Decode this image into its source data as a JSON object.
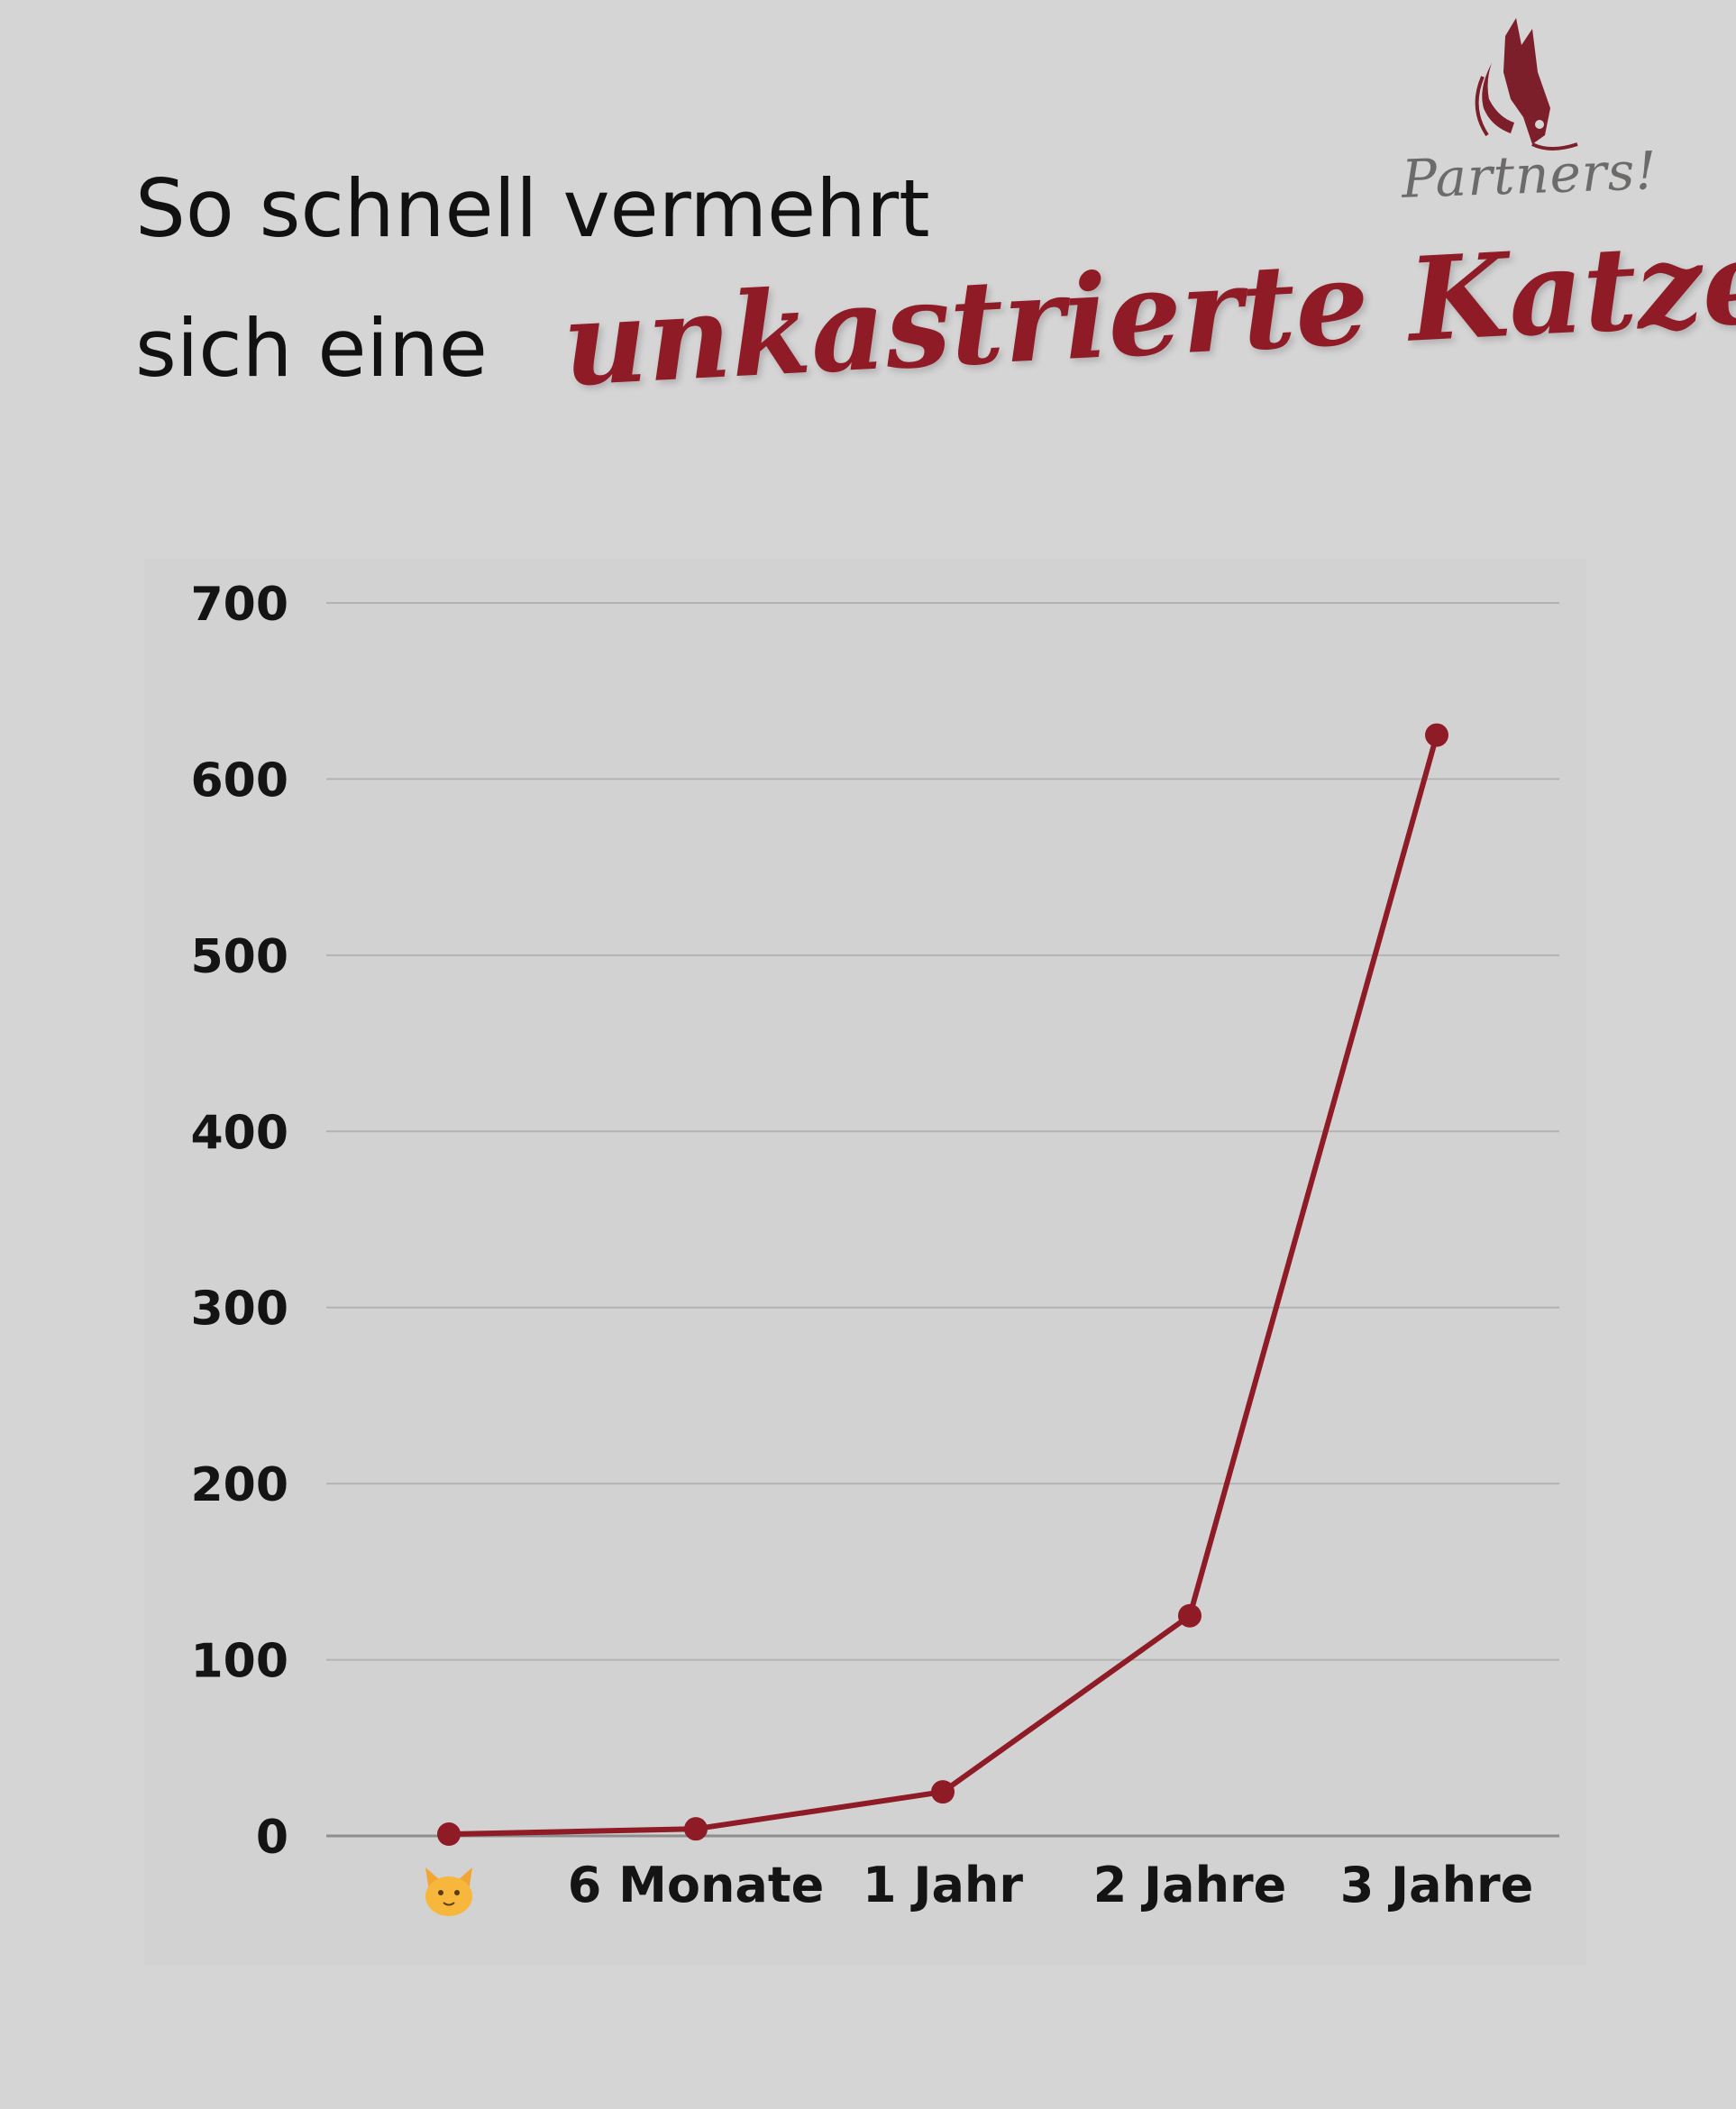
{
  "title": {
    "line1": "So schnell vermehrt",
    "line2": "sich eine",
    "script": "unkastrierte Katze"
  },
  "logo": {
    "text": "Partners!",
    "icon": "cat-dog-silhouette-icon"
  },
  "colors": {
    "accent": "#8e1b26",
    "line": "#8e1b26",
    "background": "#d6d5d6",
    "grid": "#b4b3b4"
  },
  "chart_data": {
    "type": "line",
    "categories": [
      "🐱",
      "6 Monate",
      "1 Jahr",
      "2 Jahre",
      "3 Jahre"
    ],
    "first_category_icon": "cat-face-icon",
    "series": [
      {
        "values": [
          1,
          4,
          25,
          125,
          625
        ]
      }
    ],
    "ylim": [
      0,
      700
    ],
    "yticks": [
      0,
      100,
      200,
      300,
      400,
      500,
      600,
      700
    ],
    "grid": true,
    "legend": "none"
  }
}
